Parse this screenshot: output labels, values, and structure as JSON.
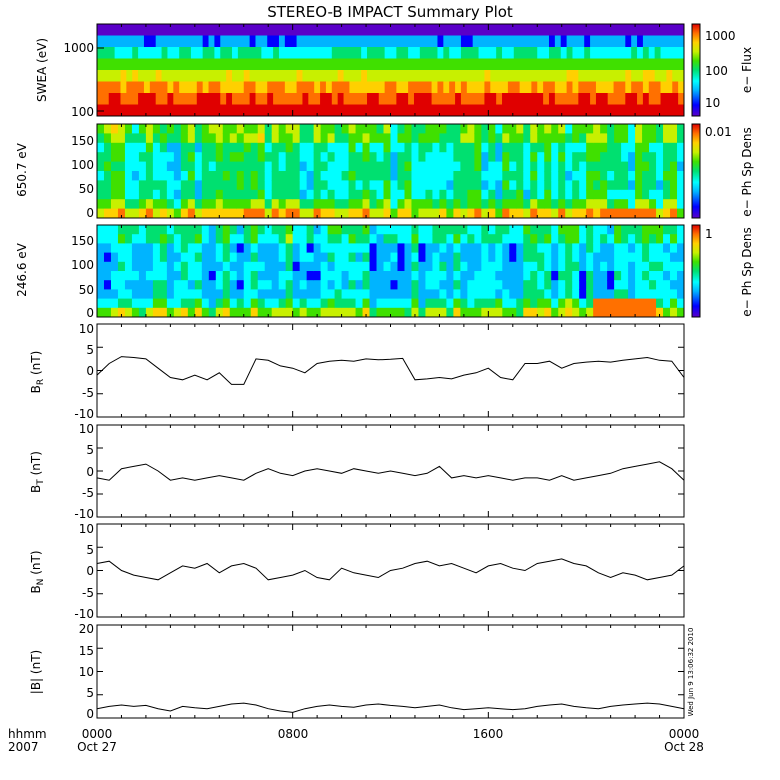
{
  "title": "STEREO-B IMPACT Summary Plot",
  "footer": {
    "left_top": "hhmm",
    "left_bottom": "2007",
    "x_ticks": [
      "0000",
      "0800",
      "1600",
      "0000"
    ],
    "x_dates": [
      "Oct 27",
      "",
      "",
      "Oct 28"
    ]
  },
  "timestamp": "Wed Jun  9 13:06:32 2010",
  "colors": {
    "spectrogram_scale": [
      "#5a00c8",
      "#0000ff",
      "#00b4ff",
      "#00ffff",
      "#00e070",
      "#40e000",
      "#c8f000",
      "#ffd000",
      "#ff7000",
      "#e00000"
    ]
  },
  "chart_data": [
    {
      "type": "heatmap",
      "name": "swea",
      "ylabel": "SWEA (eV)",
      "yscale": "log",
      "ylim": [
        95,
        2000
      ],
      "yticks": [
        "1000",
        "100"
      ],
      "colorbar_label": "e− Flux",
      "colorbar_ticks": [
        "1000",
        "100",
        "10"
      ],
      "xlim": [
        0,
        24
      ],
      "rows_top_to_bottom": [
        0.06,
        0.22,
        0.4,
        0.55,
        0.68,
        0.8,
        0.9,
        0.97
      ]
    },
    {
      "type": "heatmap",
      "name": "pad650",
      "ylabel": "650.7 eV",
      "ylim": [
        0,
        180
      ],
      "yticks": [
        "150",
        "100",
        "50",
        "0"
      ],
      "colorbar_label": "e− Ph Sp Dens",
      "colorbar_ticks": [
        "0.01"
      ],
      "xlim": [
        0,
        24
      ],
      "base_level": 0.42,
      "warm_patch": {
        "x": [
          20.6,
          22.8
        ],
        "y": [
          0,
          25
        ],
        "level": 0.85
      }
    },
    {
      "type": "heatmap",
      "name": "pad246",
      "ylabel": "246.6 eV",
      "ylim": [
        0,
        180
      ],
      "yticks": [
        "150",
        "100",
        "50",
        "0"
      ],
      "colorbar_label": "e− Ph Sp Dens",
      "colorbar_ticks": [
        "1"
      ],
      "xlim": [
        0,
        24
      ],
      "base_level": 0.32,
      "warm_patch": {
        "x": [
          20.3,
          22.8
        ],
        "y": [
          0,
          30
        ],
        "level": 0.85
      }
    },
    {
      "type": "line",
      "name": "br",
      "ylabel": "B_R (nT)",
      "ylim": [
        -10,
        10
      ],
      "yticks": [
        "10",
        "5",
        "0",
        "-5",
        "-10"
      ],
      "xlim": [
        0,
        24
      ],
      "x": [
        0.0,
        0.5,
        1.0,
        1.5,
        2.0,
        2.5,
        3.0,
        3.5,
        4.0,
        4.5,
        5.0,
        5.5,
        6.0,
        6.5,
        7.0,
        7.5,
        8.0,
        8.5,
        9.0,
        9.5,
        10.0,
        10.5,
        11.0,
        11.5,
        12.0,
        12.5,
        13.0,
        13.5,
        14.0,
        14.5,
        15.0,
        15.5,
        16.0,
        16.5,
        17.0,
        17.5,
        18.0,
        18.5,
        19.0,
        19.5,
        20.0,
        20.5,
        21.0,
        21.5,
        22.0,
        22.5,
        23.0,
        23.5,
        24.0
      ],
      "values": [
        -1.0,
        1.5,
        3.0,
        2.8,
        2.5,
        0.5,
        -1.5,
        -2.0,
        -1.0,
        -2.0,
        -0.5,
        -3.0,
        -3.0,
        2.5,
        2.2,
        1.0,
        0.5,
        -0.5,
        1.5,
        2.0,
        2.2,
        2.0,
        2.5,
        2.3,
        2.4,
        2.6,
        -2.0,
        -1.8,
        -1.5,
        -1.8,
        -1.0,
        -0.5,
        0.5,
        -1.5,
        -2.0,
        1.5,
        1.5,
        2.0,
        0.5,
        1.5,
        1.8,
        2.0,
        1.8,
        2.2,
        2.5,
        2.8,
        2.2,
        2.0,
        -1.5
      ]
    },
    {
      "type": "line",
      "name": "bt",
      "ylabel": "B_T (nT)",
      "ylim": [
        -10,
        10
      ],
      "yticks": [
        "10",
        "5",
        "0",
        "-5",
        "-10"
      ],
      "xlim": [
        0,
        24
      ],
      "x": [
        0.0,
        0.5,
        1.0,
        1.5,
        2.0,
        2.5,
        3.0,
        3.5,
        4.0,
        4.5,
        5.0,
        5.5,
        6.0,
        6.5,
        7.0,
        7.5,
        8.0,
        8.5,
        9.0,
        9.5,
        10.0,
        10.5,
        11.0,
        11.5,
        12.0,
        12.5,
        13.0,
        13.5,
        14.0,
        14.5,
        15.0,
        15.5,
        16.0,
        16.5,
        17.0,
        17.5,
        18.0,
        18.5,
        19.0,
        19.5,
        20.0,
        20.5,
        21.0,
        21.5,
        22.0,
        22.5,
        23.0,
        23.5,
        24.0
      ],
      "values": [
        -1.5,
        -2.0,
        0.5,
        1.0,
        1.5,
        0.0,
        -2.0,
        -1.5,
        -2.0,
        -1.5,
        -1.0,
        -1.5,
        -2.0,
        -0.5,
        0.5,
        -0.5,
        -1.0,
        0.0,
        0.5,
        0.0,
        -0.5,
        0.5,
        0.0,
        -0.5,
        0.0,
        -0.5,
        -1.0,
        -0.5,
        1.0,
        -1.5,
        -1.0,
        -1.5,
        -1.0,
        -1.5,
        -2.0,
        -1.5,
        -1.5,
        -2.0,
        -1.0,
        -2.0,
        -1.5,
        -1.0,
        -0.5,
        0.5,
        1.0,
        1.5,
        2.0,
        0.5,
        -2.0
      ]
    },
    {
      "type": "line",
      "name": "bn",
      "ylabel": "B_N (nT)",
      "ylim": [
        -10,
        10
      ],
      "yticks": [
        "10",
        "5",
        "0",
        "-5",
        "-10"
      ],
      "xlim": [
        0,
        24
      ],
      "x": [
        0.0,
        0.5,
        1.0,
        1.5,
        2.0,
        2.5,
        3.0,
        3.5,
        4.0,
        4.5,
        5.0,
        5.5,
        6.0,
        6.5,
        7.0,
        7.5,
        8.0,
        8.5,
        9.0,
        9.5,
        10.0,
        10.5,
        11.0,
        11.5,
        12.0,
        12.5,
        13.0,
        13.5,
        14.0,
        14.5,
        15.0,
        15.5,
        16.0,
        16.5,
        17.0,
        17.5,
        18.0,
        18.5,
        19.0,
        19.5,
        20.0,
        20.5,
        21.0,
        21.5,
        22.0,
        22.5,
        23.0,
        23.5,
        24.0
      ],
      "values": [
        1.5,
        2.0,
        0.0,
        -1.0,
        -1.5,
        -2.0,
        -0.5,
        1.0,
        0.5,
        1.5,
        -0.5,
        1.0,
        1.5,
        0.5,
        -2.0,
        -1.5,
        -1.0,
        0.0,
        -1.5,
        -2.0,
        0.5,
        -0.5,
        -1.0,
        -1.5,
        0.0,
        0.5,
        1.5,
        2.0,
        1.0,
        1.5,
        0.5,
        -0.5,
        1.0,
        1.5,
        0.5,
        0.0,
        1.5,
        2.0,
        2.5,
        1.5,
        1.0,
        -0.5,
        -1.5,
        -0.5,
        -1.0,
        -2.0,
        -1.5,
        -1.0,
        1.0
      ]
    },
    {
      "type": "line",
      "name": "bmag",
      "ylabel": "|B| (nT)",
      "ylim": [
        0,
        20
      ],
      "yticks": [
        "20",
        "15",
        "10",
        "5",
        "0"
      ],
      "xlim": [
        0,
        24
      ],
      "x": [
        0.0,
        0.5,
        1.0,
        1.5,
        2.0,
        2.5,
        3.0,
        3.5,
        4.0,
        4.5,
        5.0,
        5.5,
        6.0,
        6.5,
        7.0,
        7.5,
        8.0,
        8.5,
        9.0,
        9.5,
        10.0,
        10.5,
        11.0,
        11.5,
        12.0,
        12.5,
        13.0,
        13.5,
        14.0,
        14.5,
        15.0,
        15.5,
        16.0,
        16.5,
        17.0,
        17.5,
        18.0,
        18.5,
        19.0,
        19.5,
        20.0,
        20.5,
        21.0,
        21.5,
        22.0,
        22.5,
        23.0,
        23.5,
        24.0
      ],
      "values": [
        2.0,
        2.5,
        2.8,
        2.5,
        2.7,
        2.0,
        1.5,
        2.5,
        2.2,
        2.0,
        2.5,
        3.0,
        3.2,
        2.8,
        2.0,
        1.5,
        1.2,
        2.0,
        2.5,
        2.8,
        2.5,
        2.3,
        2.8,
        3.0,
        2.7,
        2.5,
        2.2,
        2.5,
        2.8,
        2.2,
        1.8,
        2.0,
        2.2,
        2.0,
        1.8,
        2.0,
        2.5,
        2.8,
        3.0,
        2.5,
        2.2,
        2.0,
        2.5,
        2.8,
        3.0,
        3.2,
        3.0,
        2.5,
        2.0
      ]
    }
  ]
}
